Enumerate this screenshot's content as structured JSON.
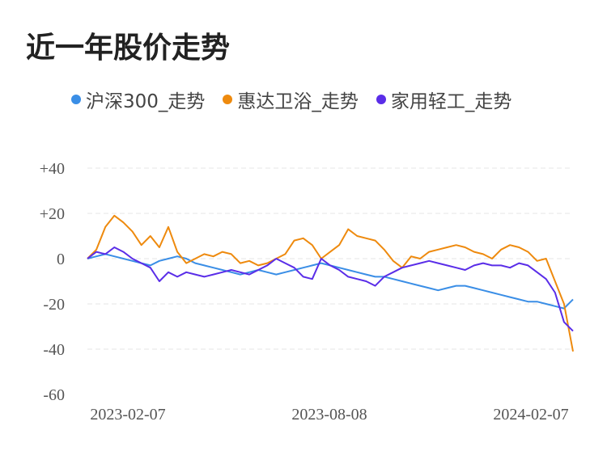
{
  "title": "近一年股价走势",
  "chart_data": {
    "type": "line",
    "x_ticks": [
      "2023-02-07",
      "2023-08-08",
      "2024-02-07"
    ],
    "y_ticks": [
      "+40",
      "+20",
      "0",
      "-20",
      "-40",
      "-60"
    ],
    "ylim": [
      -60,
      40
    ],
    "grid": true,
    "legend_position": "top",
    "colors": [
      "#3a8ee6",
      "#ee8a0e",
      "#5a2de8"
    ],
    "series": [
      {
        "name": "沪深300_走势",
        "values": [
          0,
          1,
          2,
          1,
          0,
          -1,
          -2,
          -3,
          -1,
          0,
          1,
          0,
          -2,
          -3,
          -4,
          -5,
          -6,
          -7,
          -6,
          -5,
          -6,
          -7,
          -6,
          -5,
          -4,
          -3,
          -2,
          -3,
          -4,
          -5,
          -6,
          -7,
          -8,
          -8,
          -9,
          -10,
          -11,
          -12,
          -13,
          -14,
          -13,
          -12,
          -12,
          -13,
          -14,
          -15,
          -16,
          -17,
          -18,
          -19,
          -19,
          -20,
          -21,
          -22,
          -18
        ]
      },
      {
        "name": "惠达卫浴_走势",
        "values": [
          0,
          4,
          14,
          19,
          16,
          12,
          6,
          10,
          5,
          14,
          3,
          -2,
          0,
          2,
          1,
          3,
          2,
          -2,
          -1,
          -3,
          -2,
          0,
          2,
          8,
          9,
          6,
          0,
          3,
          6,
          13,
          10,
          9,
          8,
          4,
          -1,
          -4,
          1,
          0,
          3,
          4,
          5,
          6,
          5,
          3,
          2,
          0,
          4,
          6,
          5,
          3,
          -1,
          0,
          -10,
          -20,
          -41
        ]
      },
      {
        "name": "家用轻工_走势",
        "values": [
          0,
          3,
          2,
          5,
          3,
          0,
          -2,
          -4,
          -10,
          -6,
          -8,
          -6,
          -7,
          -8,
          -7,
          -6,
          -5,
          -6,
          -7,
          -5,
          -3,
          0,
          -2,
          -4,
          -8,
          -9,
          0,
          -3,
          -5,
          -8,
          -9,
          -10,
          -12,
          -8,
          -6,
          -4,
          -3,
          -2,
          -1,
          -2,
          -3,
          -4,
          -5,
          -3,
          -2,
          -3,
          -3,
          -4,
          -2,
          -3,
          -6,
          -9,
          -15,
          -28,
          -32
        ]
      }
    ]
  }
}
